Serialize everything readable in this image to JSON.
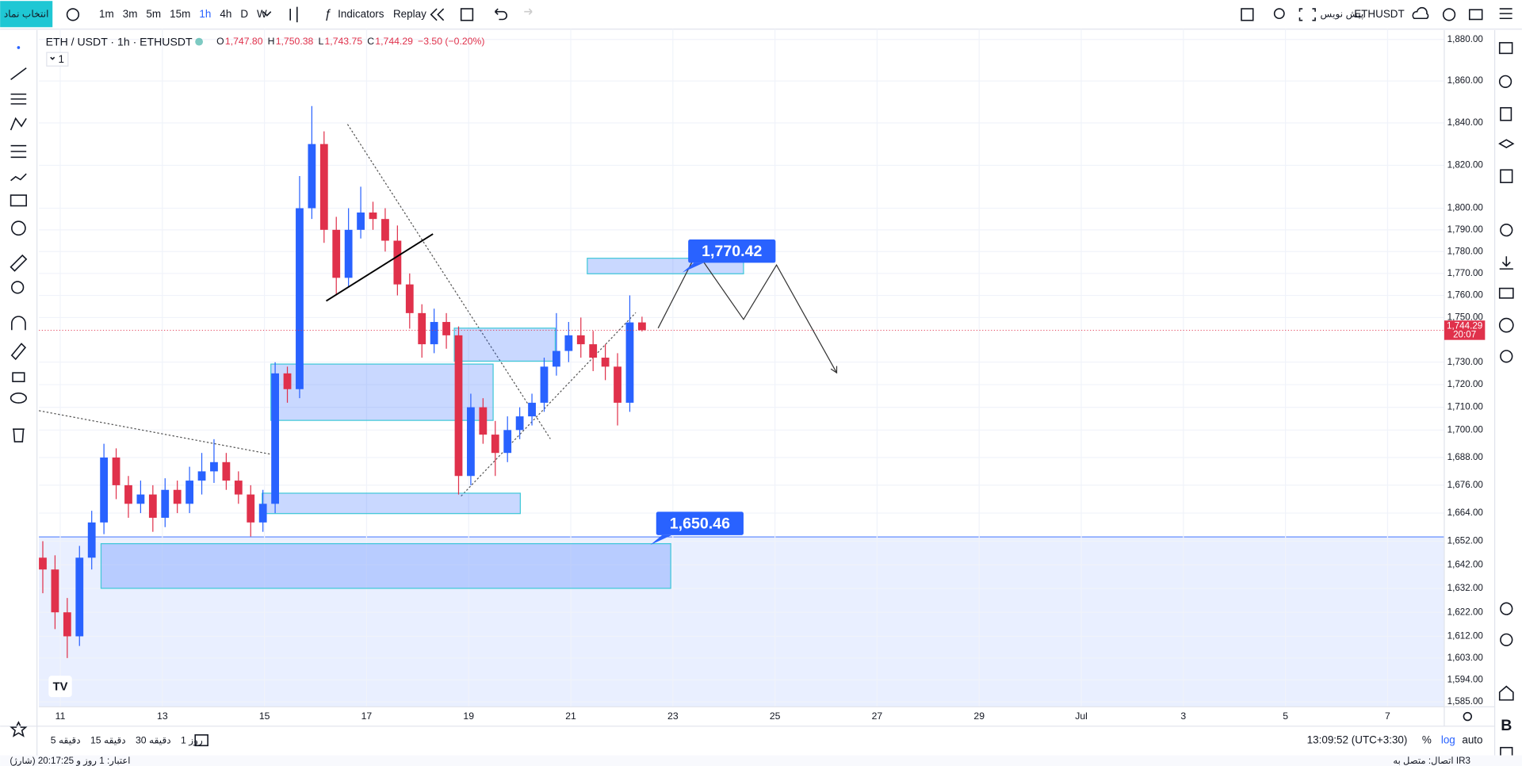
{
  "toolbar": {
    "symbol_button": "انتخاب نماد",
    "timeframes": [
      "1m",
      "3m",
      "5m",
      "15m",
      "1h",
      "4h",
      "D",
      "W"
    ],
    "indicators": "Indicators",
    "replay": "Replay",
    "symbol": "ETHUSDT",
    "draft": "پیش نویس"
  },
  "chart_data": {
    "type": "candlestick",
    "title": "ETH / USDT · 1h · ETHUSDT",
    "legend_values": [
      {
        "key": "O",
        "value": "1,747.80"
      },
      {
        "key": "H",
        "value": "1,750.38"
      },
      {
        "key": "L",
        "value": "1,743.75"
      },
      {
        "key": "C",
        "value": "1,744.29"
      }
    ],
    "change": "−3.50 (−0.20%)",
    "pane_label": "1",
    "up_color": "#2962ff",
    "down_color": "#e0314b",
    "log_scale": true,
    "ylim": [
      1583,
      1885
    ],
    "yticks": [
      {
        "value": 1880,
        "label": "1,880.00"
      },
      {
        "value": 1860,
        "label": "1,860.00"
      },
      {
        "value": 1840,
        "label": "1,840.00"
      },
      {
        "value": 1820,
        "label": "1,820.00"
      },
      {
        "value": 1800,
        "label": "1,800.00"
      },
      {
        "value": 1790,
        "label": "1,790.00"
      },
      {
        "value": 1780,
        "label": "1,780.00"
      },
      {
        "value": 1770,
        "label": "1,770.00"
      },
      {
        "value": 1760,
        "label": "1,760.00"
      },
      {
        "value": 1750,
        "label": "1,750.00"
      },
      {
        "value": 1730,
        "label": "1,730.00"
      },
      {
        "value": 1720,
        "label": "1,720.00"
      },
      {
        "value": 1710,
        "label": "1,710.00"
      },
      {
        "value": 1700,
        "label": "1,700.00"
      },
      {
        "value": 1688,
        "label": "1,688.00"
      },
      {
        "value": 1676,
        "label": "1,676.00"
      },
      {
        "value": 1664,
        "label": "1,664.00"
      },
      {
        "value": 1652,
        "label": "1,652.00"
      },
      {
        "value": 1642,
        "label": "1,642.00"
      },
      {
        "value": 1632,
        "label": "1,632.00"
      },
      {
        "value": 1622,
        "label": "1,622.00"
      },
      {
        "value": 1612,
        "label": "1,612.00"
      },
      {
        "value": 1603,
        "label": "1,603.00"
      },
      {
        "value": 1594,
        "label": "1,594.00"
      },
      {
        "value": 1585,
        "label": "1,585.00"
      }
    ],
    "x_labels": [
      "11",
      "13",
      "15",
      "17",
      "19",
      "21",
      "23",
      "25",
      "27",
      "29",
      "Jul",
      "3",
      "5",
      "7"
    ],
    "open": [
      1645,
      1640,
      1622,
      1612,
      1645,
      1660,
      1688,
      1676,
      1668,
      1672,
      1662,
      1674,
      1668,
      1678,
      1682,
      1686,
      1678,
      1672,
      1660,
      1668,
      1725,
      1718,
      1800,
      1830,
      1790,
      1768,
      1790,
      1798,
      1795,
      1785,
      1765,
      1752,
      1738,
      1748,
      1742,
      1680,
      1710,
      1698,
      1690,
      1700,
      1706,
      1712,
      1728,
      1735,
      1742,
      1738,
      1732,
      1728,
      1712,
      1747.8
    ],
    "high": [
      1652,
      1646,
      1628,
      1650,
      1665,
      1694,
      1692,
      1680,
      1678,
      1676,
      1679,
      1678,
      1684,
      1690,
      1696,
      1690,
      1682,
      1676,
      1674,
      1730,
      1728,
      1815,
      1848,
      1836,
      1796,
      1800,
      1810,
      1803,
      1800,
      1792,
      1770,
      1756,
      1754,
      1752,
      1746,
      1716,
      1714,
      1704,
      1706,
      1710,
      1716,
      1732,
      1752,
      1748,
      1750,
      1744,
      1738,
      1734,
      1760,
      1750.38
    ],
    "low": [
      1630,
      1615,
      1603,
      1608,
      1640,
      1655,
      1670,
      1662,
      1664,
      1656,
      1658,
      1664,
      1664,
      1672,
      1677,
      1674,
      1668,
      1654,
      1656,
      1664,
      1712,
      1714,
      1795,
      1784,
      1760,
      1764,
      1786,
      1790,
      1780,
      1760,
      1745,
      1732,
      1734,
      1736,
      1672,
      1676,
      1694,
      1680,
      1686,
      1696,
      1702,
      1708,
      1724,
      1730,
      1732,
      1726,
      1722,
      1702,
      1708,
      1743.75
    ],
    "close": [
      1640,
      1622,
      1612,
      1645,
      1660,
      1688,
      1676,
      1668,
      1672,
      1662,
      1674,
      1668,
      1678,
      1682,
      1686,
      1678,
      1672,
      1660,
      1668,
      1725,
      1718,
      1800,
      1830,
      1790,
      1768,
      1790,
      1798,
      1795,
      1785,
      1765,
      1752,
      1738,
      1748,
      1742,
      1680,
      1710,
      1698,
      1690,
      1700,
      1706,
      1712,
      1728,
      1735,
      1742,
      1738,
      1732,
      1728,
      1712,
      1747.8,
      1744.29
    ],
    "last_price": {
      "value": 1744.29,
      "label": "1,744.29"
    },
    "countdown": "20:07",
    "annotations": [
      {
        "value": 1770.42,
        "label": "1,770.42"
      },
      {
        "value": 1650.46,
        "label": "1,650.46"
      }
    ]
  },
  "bottom_bar": {
    "ranges": [
      "5 دقیقه",
      "15 دقیقه",
      "30 دقیقه",
      "1 روز"
    ],
    "clock": "13:09:52 (UTC+3:30)",
    "percent": "%",
    "log": "log",
    "auto": "auto"
  },
  "status_bar": {
    "credit": "اعتبار: 1 روز و 20:17:25 (شارژ)",
    "connection": "اتصال: متصل به IR3"
  }
}
